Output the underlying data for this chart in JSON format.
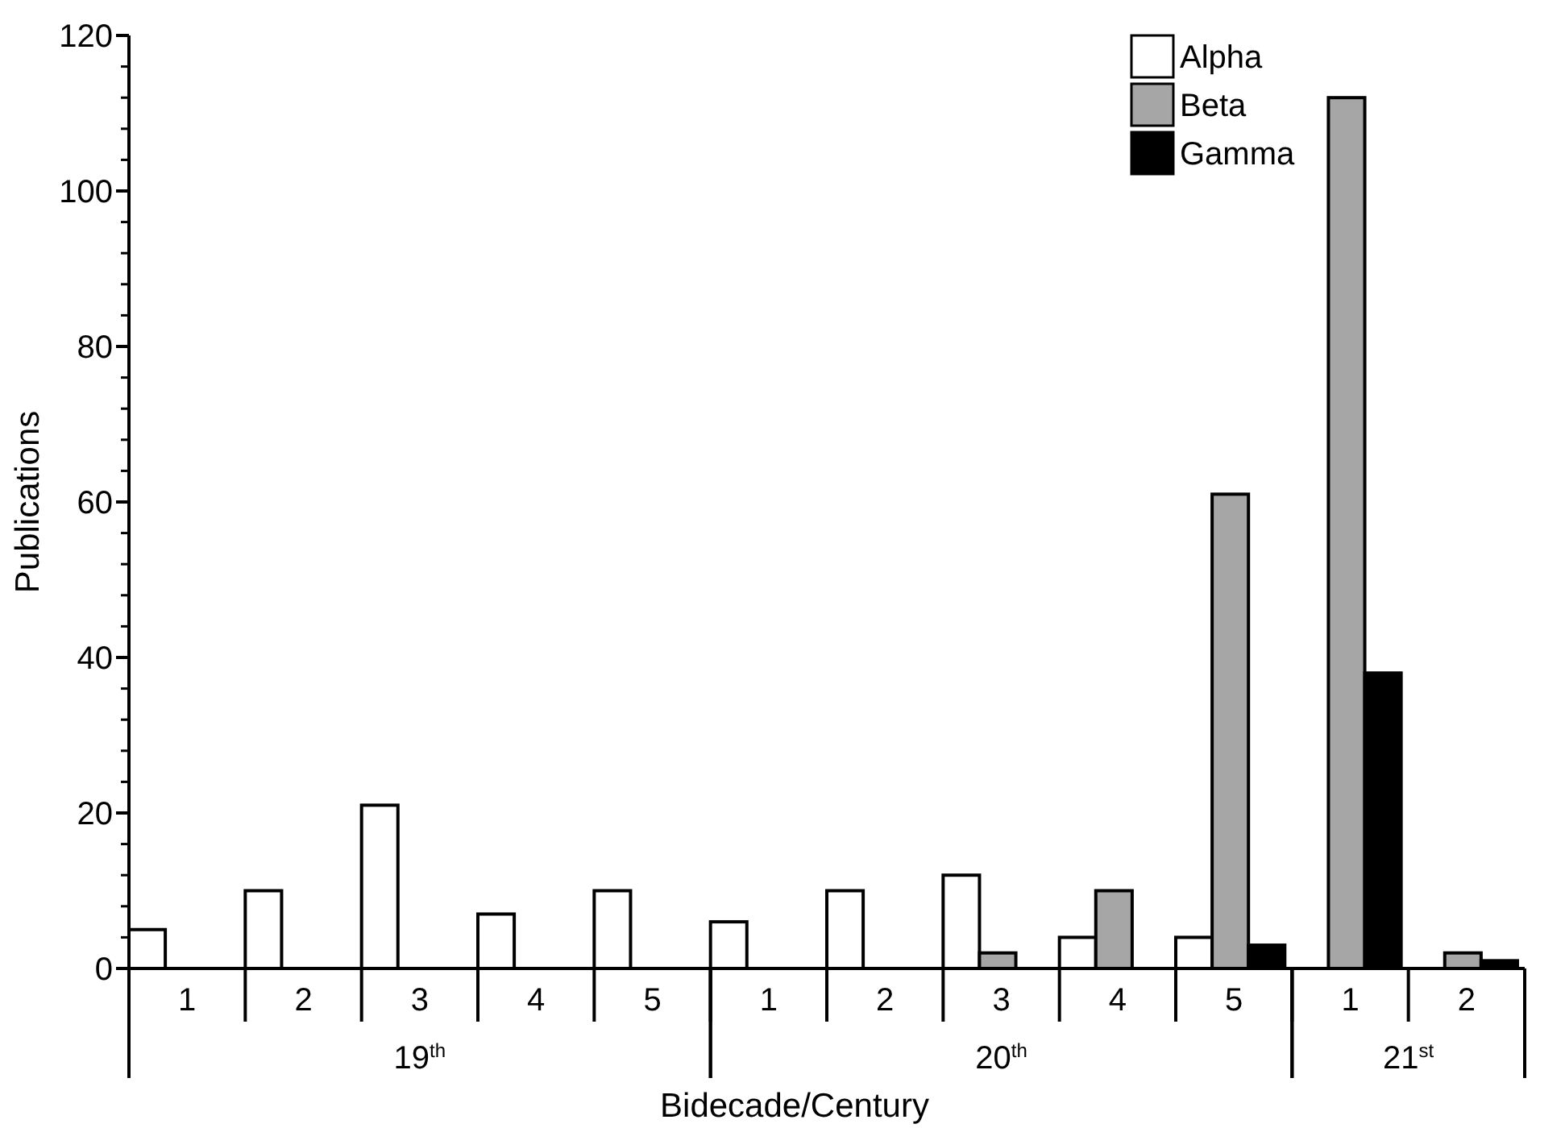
{
  "chart_data": {
    "type": "bar",
    "xlabel": "Bidecade/Century",
    "ylabel": "Publications",
    "categories": [
      "1",
      "2",
      "3",
      "4",
      "5",
      "1",
      "2",
      "3",
      "4",
      "5",
      "1",
      "2"
    ],
    "series": [
      {
        "name": "Alpha",
        "color": "#ffffff",
        "values": [
          5,
          10,
          21,
          7,
          10,
          6,
          10,
          12,
          4,
          4,
          0,
          0
        ]
      },
      {
        "name": "Beta",
        "color": "#a6a6a6",
        "values": [
          0,
          0,
          0,
          0,
          0,
          0,
          0,
          2,
          10,
          61,
          112,
          2
        ]
      },
      {
        "name": "Gamma",
        "color": "#000000",
        "values": [
          0,
          0,
          0,
          0,
          0,
          0,
          0,
          0,
          0,
          3,
          38,
          1
        ]
      }
    ],
    "annotations": [
      "19$^{th}$",
      "20$^{th}$",
      "21$^{st}$"
    ],
    "ylim": [
      0,
      120
    ],
    "yticks": [
      0,
      {
        "value": 4,
        "label": null
      },
      {
        "value": 8,
        "label": null
      },
      {
        "value": 12,
        "label": null
      },
      {
        "value": 16,
        "label": null
      },
      20,
      {
        "value": 24,
        "label": null
      },
      {
        "value": 28,
        "label": null
      },
      {
        "value": 32,
        "label": null
      },
      {
        "value": 36,
        "label": null
      },
      40,
      {
        "value": 44,
        "label": null
      },
      {
        "value": 48,
        "label": null
      },
      {
        "value": 52,
        "label": null
      },
      {
        "value": 56,
        "label": null
      },
      60,
      {
        "value": 64,
        "label": null
      },
      {
        "value": 68,
        "label": null
      },
      {
        "value": 72,
        "label": null
      },
      {
        "value": 76,
        "label": null
      },
      80,
      {
        "value": 84,
        "label": null
      },
      {
        "value": 88,
        "label": null
      },
      {
        "value": 92,
        "label": null
      },
      {
        "value": 96,
        "label": null
      },
      100,
      {
        "value": 104,
        "label": null
      },
      {
        "value": 108,
        "label": null
      },
      {
        "value": 112,
        "label": null
      },
      {
        "value": 116,
        "label": null
      },
      120
    ],
    "grid": false,
    "legend": "top right"
  }
}
